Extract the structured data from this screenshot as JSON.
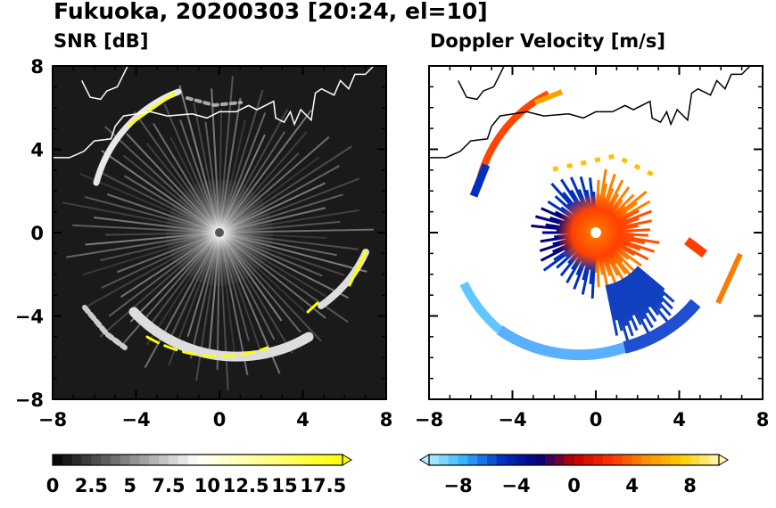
{
  "figure": {
    "title": "Fukuoka, 20200303 [20:24, el=10]"
  },
  "panels": [
    {
      "id": "snr",
      "title": "SNR [dB]"
    },
    {
      "id": "doppler",
      "title": "Doppler Velocity [m/s]"
    }
  ],
  "chart_data": [
    {
      "type": "heatmap",
      "title": "SNR [dB]",
      "subject": "radar PPI scan",
      "xlim": [
        -8,
        8
      ],
      "ylim": [
        -8,
        8
      ],
      "xticks": [
        "−8",
        "−4",
        "0",
        "4",
        "8"
      ],
      "yticks": [
        "8",
        "4",
        "0",
        "−4",
        "−8"
      ],
      "colorbar": {
        "min": 0,
        "max": 18.75,
        "extend": "max",
        "tick_labels": [
          "0",
          "2.5",
          "5",
          "7.5",
          "10",
          "12.5",
          "15",
          "17.5"
        ],
        "colors": [
          "#000000",
          "#ffffff",
          "#ffff00"
        ]
      },
      "background": "#1a1a1a"
    },
    {
      "type": "heatmap",
      "title": "Doppler Velocity [m/s]",
      "subject": "radar PPI scan",
      "xlim": [
        -8,
        8
      ],
      "ylim": [
        -8,
        8
      ],
      "xticks": [
        "−8",
        "−4",
        "0",
        "4",
        "8"
      ],
      "yticks": [
        "8",
        "4",
        "0",
        "−4",
        "−8"
      ],
      "colorbar": {
        "min": -10,
        "max": 10,
        "extend": "both",
        "tick_labels": [
          "−8",
          "−4",
          "0",
          "4",
          "8"
        ],
        "colors": [
          "#b0f0ff",
          "#30b0ff",
          "#0030c0",
          "#000080",
          "#c00000",
          "#ff3000",
          "#ff9000",
          "#ffd000",
          "#fff8b0"
        ]
      },
      "background": "#ffffff"
    }
  ]
}
